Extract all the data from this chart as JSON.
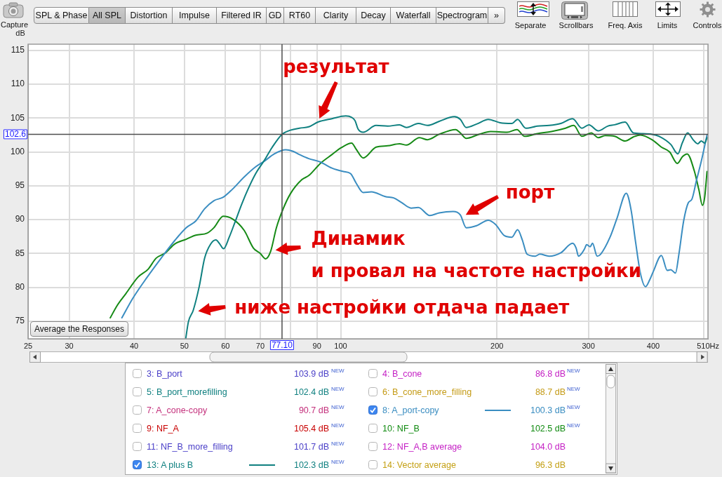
{
  "chart_data": {
    "type": "line",
    "ylabel": "dB",
    "log": "x",
    "xlim": [
      25,
      510
    ],
    "xticks": [
      25,
      30,
      40,
      50,
      60,
      70,
      {
        "value": 80,
        "label": null
      },
      90,
      100,
      200,
      300,
      400,
      {
        "value": 500,
        "label": null
      },
      {
        "value": 510,
        "label": "510Hz"
      }
    ],
    "ylim": [
      72.4,
      115.9
    ],
    "yticks": [
      75,
      80,
      85,
      90,
      95,
      100,
      105,
      110,
      115
    ],
    "grid": true,
    "legend": "bottom",
    "ref_lines": [
      {
        "axis": "x",
        "value": 77.1,
        "label": "77.10",
        "color": "#4d4d4d"
      },
      {
        "axis": "y",
        "value": 102.6,
        "label": "102.6",
        "color": "#4d4d4d"
      }
    ],
    "annotations": [
      {
        "text": "результат",
        "x": 91,
        "y": 104.5
      },
      {
        "text": "порт",
        "x": 172,
        "y": 90.5
      },
      {
        "text": "Динамик\nи провал на частоте настройки",
        "x": 73.5,
        "y": 85.5
      },
      {
        "text": "ниже настройки отдача падает",
        "x": 52,
        "y": 76.5
      },
      "Capture",
      "SPL & Phase",
      "All SPL",
      "Distortion",
      "Impulse",
      "Filtered IR",
      "GD",
      "RT60",
      "Clarity",
      "Decay",
      "Waterfall",
      "Spectrogram",
      "»",
      "Separate",
      "Scrollbars",
      "Freq. Axis",
      "Limits",
      "Controls",
      "Average the Responses",
      "3: B_port",
      "103.9 dB",
      "NEW",
      "4: B_cone",
      "86.8 dB",
      "NEW",
      "5: B_port_morefilling",
      "102.4 dB",
      "NEW",
      "6: B_cone_more_filling",
      "88.7 dB",
      "NEW",
      "7: A_cone-copy",
      "90.7 dB",
      "NEW",
      "100.3 dB",
      "NEW",
      "9: NF_A",
      "105.4 dB",
      "NEW",
      "10: NF_B",
      "102.5 dB",
      "NEW",
      "11: NF_B_more_filling",
      "101.7 dB",
      "NEW",
      "12: NF_A,B average",
      "104.0 dB",
      "102.3 dB",
      "NEW",
      "14: Vector average",
      "96.3 dB"
    ],
    "series": [
      {
        "name": "13: A plus B",
        "color": "#0f8080",
        "x": [
          50.3,
          50.9,
          52.0,
          53.4,
          54.7,
          56.2,
          57.5,
          58.5,
          59.5,
          61.0,
          62.5,
          64.5,
          66.5,
          68.6,
          71.5,
          73.7,
          77.1,
          80.0,
          83.3,
          86.8,
          90.4,
          96.2,
          102.3,
          105.0,
          106.6,
          108.0,
          110.5,
          117.0,
          123.2,
          129.8,
          133.9,
          141.1,
          147.0,
          154.8,
          165.6,
          170.0,
          174.5,
          182.7,
          192.5,
          202.8,
          213.6,
          219.2,
          227.3,
          239.3,
          252.1,
          265.5,
          279.7,
          291.5,
          300.7,
          313.4,
          326.7,
          337.0,
          353.1,
          366.2,
          381.7,
          397.8,
          410.5,
          432.3,
          446.0,
          455.4,
          465.9,
          477.2,
          487.2,
          494.9,
          502.5,
          507.7
        ],
        "values": [
          72.4,
          74.9,
          76.6,
          80.1,
          84.3,
          86.4,
          87.0,
          86.4,
          85.7,
          87.4,
          89.5,
          92.3,
          94.7,
          96.8,
          98.9,
          100.6,
          102.6,
          103.2,
          103.5,
          103.7,
          104.4,
          104.9,
          105.3,
          105.1,
          104.6,
          103.4,
          102.9,
          103.9,
          103.8,
          104.0,
          103.6,
          104.2,
          103.9,
          104.5,
          105.2,
          104.8,
          103.6,
          104.1,
          104.8,
          104.3,
          104.2,
          104.8,
          103.5,
          103.8,
          103.9,
          104.2,
          104.9,
          103.5,
          104.0,
          103.1,
          103.8,
          104.0,
          104.4,
          102.8,
          102.7,
          102.6,
          102.3,
          101.1,
          99.7,
          101.4,
          102.8,
          101.8,
          101.2,
          101.6,
          101.3,
          102.1
        ]
      },
      {
        "name": "8: A_port-copy",
        "color": "#3a8dc1",
        "x": [
          37.9,
          39.8,
          42.4,
          45.1,
          47.9,
          50.4,
          52.6,
          54.7,
          57.0,
          59.4,
          61.9,
          65.2,
          68.6,
          71.5,
          74.5,
          78.4,
          80.8,
          83.3,
          86.8,
          91.4,
          96.2,
          101.2,
          104.5,
          107.1,
          110.5,
          114.6,
          121.9,
          126.5,
          131.1,
          136.7,
          141.1,
          148.5,
          154.8,
          164.7,
          170.0,
          174.5,
          182.7,
          192.5,
          198.6,
          207.0,
          213.6,
          219.2,
          223.8,
          228.5,
          236.9,
          241.9,
          252.1,
          265.5,
          279.7,
          284.1,
          287.1,
          294.6,
          297.7,
          302.4,
          305.5,
          311.9,
          316.8,
          330.2,
          340.6,
          354.9,
          362.4,
          370.0,
          377.8,
          386.5,
          393.7,
          399.9,
          414.7,
          425.6,
          432.3,
          441.4,
          448.2,
          457.7,
          467.3,
          474.7,
          484.5,
          494.9,
          507.7
        ],
        "values": [
          75.5,
          78.4,
          81.5,
          84.3,
          86.9,
          88.8,
          89.8,
          91.6,
          92.8,
          93.3,
          94.5,
          96.3,
          97.8,
          98.7,
          99.7,
          100.3,
          100.1,
          99.6,
          99.0,
          98.5,
          97.6,
          97.1,
          96.8,
          95.4,
          94.0,
          94.1,
          93.4,
          93.2,
          92.5,
          91.7,
          91.8,
          90.6,
          91.0,
          91.2,
          90.7,
          88.8,
          89.1,
          89.9,
          89.3,
          87.6,
          87.4,
          88.5,
          87.0,
          84.9,
          84.6,
          84.9,
          84.6,
          85.1,
          86.5,
          85.8,
          84.6,
          85.6,
          86.3,
          86.0,
          86.5,
          84.6,
          84.9,
          87.4,
          90.2,
          93.9,
          91.5,
          86.6,
          82.1,
          80.1,
          81.1,
          82.3,
          84.7,
          82.5,
          82.6,
          82.1,
          84.9,
          89.8,
          92.5,
          93.0,
          95.8,
          98.6,
          102.5
        ]
      },
      {
        "color": "#168a16",
        "x": [
          36.0,
          37.1,
          38.6,
          40.7,
          42.6,
          44.1,
          46.0,
          47.9,
          50.4,
          52.6,
          55.3,
          57.0,
          59.4,
          61.9,
          65.2,
          67.9,
          70.0,
          71.7,
          73.3,
          75.2,
          77.5,
          80.0,
          84.2,
          86.8,
          91.4,
          96.2,
          100.2,
          105.0,
          107.1,
          110.5,
          117.0,
          123.2,
          129.8,
          133.9,
          141.8,
          147.0,
          154.8,
          166.5,
          170.0,
          174.5,
          184.7,
          194.5,
          209.2,
          218.5,
          226.1,
          239.3,
          254.7,
          271.1,
          281.1,
          291.5,
          303.9,
          313.4,
          323.4,
          337.0,
          353.1,
          366.2,
          377.8,
          397.8,
          414.7,
          430.0,
          445.2,
          455.4,
          465.0,
          479.8,
          489.7,
          497.5,
          502.5,
          507.7
        ],
        "values": [
          75.5,
          77.3,
          79.1,
          81.5,
          82.7,
          84.3,
          85.1,
          86.4,
          87.1,
          87.7,
          88.0,
          88.8,
          90.5,
          90.1,
          88.4,
          85.8,
          85.0,
          84.2,
          85.3,
          88.8,
          91.6,
          93.8,
          95.9,
          96.5,
          98.3,
          99.6,
          100.6,
          101.3,
          100.4,
          99.1,
          100.7,
          100.9,
          101.2,
          101.0,
          102.1,
          101.8,
          102.6,
          103.3,
          102.8,
          102.0,
          102.6,
          103.0,
          102.9,
          103.3,
          102.3,
          102.7,
          103.0,
          103.5,
          103.9,
          102.3,
          102.8,
          102.1,
          102.4,
          102.3,
          101.6,
          102.2,
          102.5,
          101.8,
          100.7,
          100.0,
          98.3,
          99.3,
          99.7,
          97.2,
          94.4,
          92.1,
          93.3,
          97.1
        ]
      }
    ]
  }
}
